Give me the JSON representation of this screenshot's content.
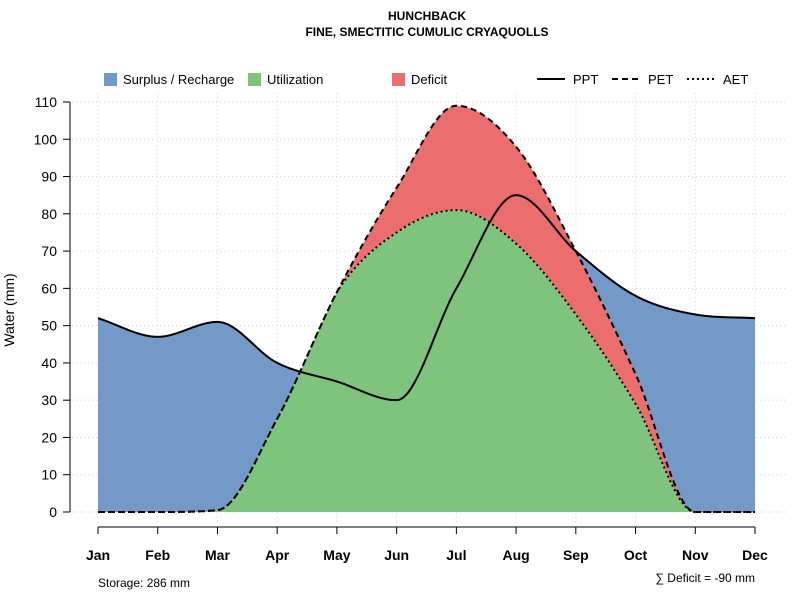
{
  "chart_data": {
    "type": "area",
    "title": "HUNCHBACK",
    "subtitle": "FINE, SMECTITIC CUMULIC CRYAQUOLLS",
    "ylabel": "Water (mm)",
    "xlabel": "",
    "ylim": [
      0,
      110
    ],
    "yticks": [
      0,
      10,
      20,
      30,
      40,
      50,
      60,
      70,
      80,
      90,
      100,
      110
    ],
    "categories": [
      "Jan",
      "Feb",
      "Mar",
      "Apr",
      "May",
      "Jun",
      "Jul",
      "Aug",
      "Sep",
      "Oct",
      "Nov",
      "Dec"
    ],
    "grid": true,
    "series": [
      {
        "name": "PPT",
        "style": "solid",
        "values": [
          52,
          47,
          51,
          40,
          35,
          30,
          60,
          85,
          70,
          58,
          53,
          52
        ]
      },
      {
        "name": "PET",
        "style": "dashed",
        "values": [
          0,
          0,
          0.5,
          25,
          59,
          87,
          109,
          98,
          70,
          37,
          0,
          0
        ]
      },
      {
        "name": "AET",
        "style": "dotted",
        "values": [
          0,
          0,
          0.5,
          25,
          59,
          75,
          81,
          72,
          53,
          29,
          0,
          0
        ]
      }
    ],
    "areas": [
      {
        "name": "Surplus / Recharge",
        "color": "#7399C6"
      },
      {
        "name": "Utilization",
        "color": "#7FC47C"
      },
      {
        "name": "Deficit",
        "color": "#EC6D6D"
      }
    ],
    "legend": [
      "Surplus / Recharge",
      "Utilization",
      "Deficit",
      "PPT",
      "PET",
      "AET"
    ],
    "legend_placement": "top",
    "storage_note": "Storage: 286 mm",
    "deficit_note": "∑ Deficit = -90 mm"
  }
}
